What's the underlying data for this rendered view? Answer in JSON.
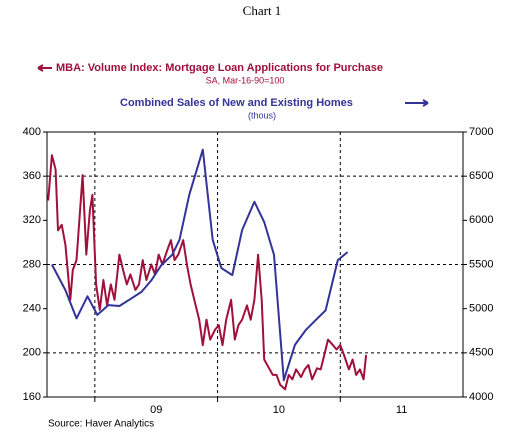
{
  "chart_data": {
    "type": "line",
    "title": "Chart 1",
    "series": [
      {
        "name": "MBA: Volume Index: Mortgage Loan Applications for Purchase",
        "units": "SA, Mar-16-90=100",
        "color": "#a0103a",
        "axis": "y",
        "x": [
          2008.62,
          2008.65,
          2008.68,
          2008.7,
          2008.73,
          2008.76,
          2008.8,
          2008.82,
          2008.85,
          2008.9,
          2008.93,
          2008.96,
          2008.98,
          2009.01,
          2009.04,
          2009.07,
          2009.1,
          2009.13,
          2009.16,
          2009.2,
          2009.23,
          2009.26,
          2009.29,
          2009.33,
          2009.36,
          2009.39,
          2009.42,
          2009.46,
          2009.49,
          2009.52,
          2009.55,
          2009.59,
          2009.62,
          2009.65,
          2009.68,
          2009.72,
          2009.75,
          2009.78,
          2009.81,
          2009.85,
          2009.88,
          2009.91,
          2009.94,
          2009.98,
          2010.01,
          2010.04,
          2010.07,
          2010.11,
          2010.14,
          2010.17,
          2010.2,
          2010.24,
          2010.27,
          2010.3,
          2010.33,
          2010.36,
          2010.38,
          2010.42,
          2010.45,
          2010.48,
          2010.51,
          2010.55,
          2010.58,
          2010.61,
          2010.64,
          2010.68,
          2010.71,
          2010.74,
          2010.77,
          2010.81,
          2010.84,
          2010.87,
          2010.9,
          2010.94,
          2010.97,
          2011.0,
          2011.03,
          2011.07,
          2011.1,
          2011.13,
          2011.16,
          2011.19,
          2011.21
        ],
        "values": [
          338,
          379,
          366,
          311,
          316,
          298,
          248,
          275,
          284,
          361,
          289,
          329,
          343,
          262,
          239,
          266,
          243,
          262,
          248,
          289,
          275,
          262,
          271,
          257,
          262,
          284,
          266,
          280,
          271,
          289,
          280,
          293,
          302,
          284,
          289,
          302,
          280,
          262,
          248,
          230,
          207,
          230,
          212,
          221,
          225,
          207,
          230,
          248,
          212,
          225,
          230,
          243,
          230,
          248,
          289,
          248,
          194,
          186,
          180,
          180,
          171,
          167,
          180,
          176,
          185,
          178,
          185,
          189,
          176,
          186,
          185,
          198,
          212,
          207,
          203,
          207,
          198,
          185,
          194,
          180,
          185,
          176,
          198
        ]
      },
      {
        "name": "Combined Sales of New and Existing Homes",
        "units": "(thous)",
        "color": "#333399",
        "axis": "y2",
        "x": [
          2008.65,
          2008.76,
          2008.85,
          2008.94,
          2009.02,
          2009.11,
          2009.2,
          2009.28,
          2009.38,
          2009.46,
          2009.54,
          2009.63,
          2009.69,
          2009.77,
          2009.88,
          2009.96,
          2010.03,
          2010.12,
          2010.2,
          2010.3,
          2010.38,
          2010.46,
          2010.54,
          2010.63,
          2010.72,
          2010.8,
          2010.88,
          2010.98,
          2011.06
        ],
        "values": [
          5500,
          5210,
          4890,
          5140,
          4930,
          5040,
          5030,
          5100,
          5190,
          5320,
          5490,
          5610,
          5780,
          6290,
          6800,
          5780,
          5460,
          5380,
          5890,
          6210,
          5980,
          5610,
          4190,
          4590,
          4760,
          4870,
          4980,
          5550,
          5640
        ]
      }
    ],
    "xlim": [
      2008.61,
      2012.0
    ],
    "xticks": [
      {
        "value": 2009.5,
        "label": "09"
      },
      {
        "value": 2010.5,
        "label": "10"
      },
      {
        "value": 2011.5,
        "label": "11"
      }
    ],
    "xgrid": [
      2009,
      2010,
      2011
    ],
    "ylim": [
      160,
      400
    ],
    "yticks": [
      160,
      200,
      240,
      280,
      320,
      360,
      400
    ],
    "ygrid": [
      200,
      280,
      360
    ],
    "y2lim": [
      4000,
      7000
    ],
    "y2ticks": [
      4000,
      4500,
      5000,
      5500,
      6000,
      6500,
      7000
    ],
    "source": "Source: Haver Analytics"
  }
}
